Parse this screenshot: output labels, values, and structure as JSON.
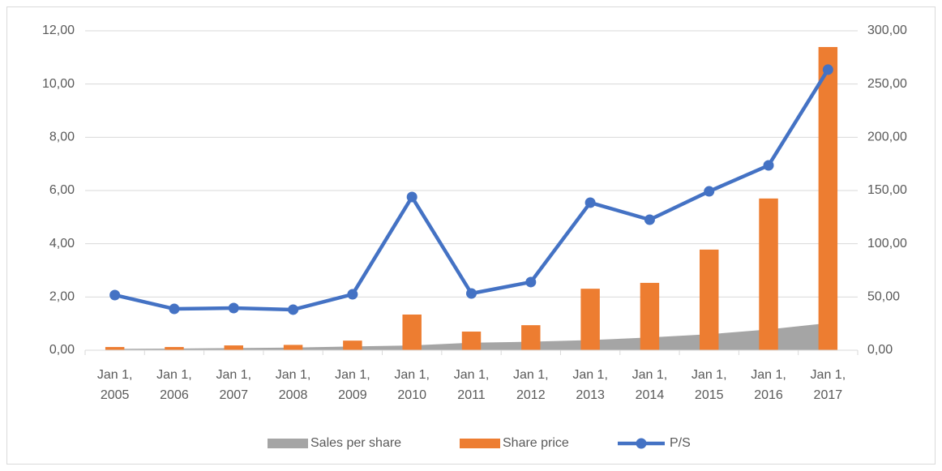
{
  "chart_data": {
    "type": "combo",
    "categories": [
      "Jan 1, 2005",
      "Jan 1, 2006",
      "Jan 1, 2007",
      "Jan 1, 2008",
      "Jan 1, 2009",
      "Jan 1, 2010",
      "Jan 1, 2011",
      "Jan 1, 2012",
      "Jan 1, 2013",
      "Jan 1, 2014",
      "Jan 1, 2015",
      "Jan 1, 2016",
      "Jan 1, 2017"
    ],
    "series": [
      {
        "name": "Sales per share",
        "type": "area",
        "color": "#a5a5a5",
        "axis": "y",
        "values": [
          0.05,
          0.06,
          0.08,
          0.1,
          0.14,
          0.18,
          0.28,
          0.32,
          0.38,
          0.48,
          0.6,
          0.78,
          1.02
        ]
      },
      {
        "name": "Share price",
        "type": "bar",
        "color": "#ed7d31",
        "axis": "y",
        "values": [
          0.12,
          0.12,
          0.18,
          0.2,
          0.36,
          1.34,
          0.7,
          0.94,
          2.31,
          2.53,
          3.78,
          5.7,
          11.39
        ]
      },
      {
        "name": "P/S",
        "type": "line",
        "color": "#4472c4",
        "axis": "y2",
        "values": [
          51.8,
          38.8,
          39.6,
          38.1,
          52.5,
          143.9,
          53.3,
          64,
          138.6,
          122.6,
          149.2,
          173.6,
          263.5
        ]
      }
    ],
    "ylim": [
      0,
      12
    ],
    "yticks": [
      {
        "value": 0,
        "label": "0,00"
      },
      {
        "value": 2,
        "label": "2,00"
      },
      {
        "value": 4,
        "label": "4,00"
      },
      {
        "value": 6,
        "label": "6,00"
      },
      {
        "value": 8,
        "label": "8,00"
      },
      {
        "value": 10,
        "label": "10,00"
      },
      {
        "value": 12,
        "label": "12,00"
      }
    ],
    "y2lim": [
      0,
      300
    ],
    "y2ticks": [
      {
        "value": 0,
        "label": "0,00"
      },
      {
        "value": 50,
        "label": "50,00"
      },
      {
        "value": 100,
        "label": "100,00"
      },
      {
        "value": 150,
        "label": "150,00"
      },
      {
        "value": 200,
        "label": "200,00"
      },
      {
        "value": 250,
        "label": "250,00"
      },
      {
        "value": 300,
        "label": "300,00"
      }
    ],
    "grid": true,
    "legend": "bottom"
  }
}
